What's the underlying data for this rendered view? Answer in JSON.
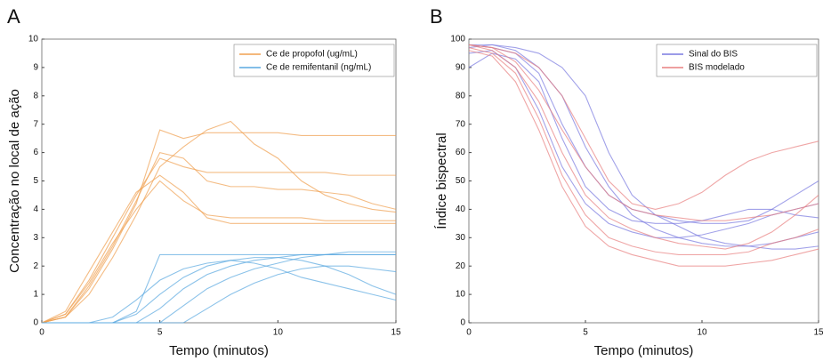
{
  "chart_data": [
    {
      "type": "line",
      "panel_label": "A",
      "xlabel": "Tempo (minutos)",
      "ylabel": "Concentração no local de ação",
      "xlim": [
        0,
        15
      ],
      "xticks": [
        0,
        5,
        10,
        15
      ],
      "ylim": [
        0,
        10
      ],
      "yticks": [
        0,
        1,
        2,
        3,
        4,
        5,
        6,
        7,
        8,
        9,
        10
      ],
      "x": [
        0,
        1,
        2,
        3,
        4,
        5,
        6,
        7,
        8,
        9,
        10,
        11,
        12,
        13,
        14,
        15
      ],
      "series": [
        {
          "name": "Ce de propofol (ug/mL)",
          "color": "#f0a050",
          "lines": [
            [
              0,
              0.3,
              1.5,
              3,
              4.5,
              5.8,
              5.5,
              5.3,
              5.3,
              5.3,
              5.3,
              5.3,
              5.3,
              5.2,
              5.2,
              5.2
            ],
            [
              0,
              0.2,
              1.2,
              2.6,
              4.2,
              6.8,
              6.5,
              6.7,
              6.7,
              6.7,
              6.7,
              6.6,
              6.6,
              6.6,
              6.6,
              6.6
            ],
            [
              0,
              0.3,
              1.4,
              2.8,
              4.0,
              5.0,
              4.3,
              3.8,
              3.7,
              3.7,
              3.7,
              3.7,
              3.6,
              3.6,
              3.6,
              3.6
            ],
            [
              0,
              0.2,
              1.3,
              2.7,
              4.3,
              6.0,
              5.8,
              5.0,
              4.8,
              4.8,
              4.7,
              4.7,
              4.6,
              4.5,
              4.2,
              4.0
            ],
            [
              0,
              0.4,
              1.8,
              3.2,
              4.6,
              5.2,
              4.6,
              3.7,
              3.5,
              3.5,
              3.5,
              3.5,
              3.5,
              3.5,
              3.5,
              3.5
            ],
            [
              0,
              0.2,
              1.0,
              2.3,
              3.8,
              5.5,
              6.2,
              6.8,
              7.1,
              6.3,
              5.8,
              5.0,
              4.5,
              4.2,
              4.0,
              3.9
            ]
          ]
        },
        {
          "name": "Ce de remifentanil (ng/mL)",
          "color": "#5aa8e0",
          "lines": [
            [
              0,
              0,
              0,
              0,
              0,
              0.5,
              1.2,
              1.7,
              2.0,
              2.2,
              2.3,
              2.4,
              2.4,
              2.4,
              2.4,
              2.4
            ],
            [
              0,
              0,
              0,
              0,
              0.3,
              1.0,
              1.6,
              2.0,
              2.2,
              2.3,
              2.3,
              2.2,
              2.0,
              1.7,
              1.3,
              1.0
            ],
            [
              0,
              0,
              0,
              0,
              0,
              0,
              0.6,
              1.2,
              1.6,
              1.9,
              2.1,
              2.3,
              2.4,
              2.5,
              2.5,
              2.5
            ],
            [
              0,
              0,
              0,
              0.2,
              0.8,
              1.5,
              1.9,
              2.1,
              2.2,
              2.1,
              1.9,
              1.6,
              1.4,
              1.2,
              1.0,
              0.8
            ],
            [
              0,
              0,
              0,
              0,
              0,
              0,
              0,
              0.5,
              1.0,
              1.4,
              1.7,
              1.9,
              2.0,
              2.0,
              1.9,
              1.8
            ],
            [
              0,
              0,
              0,
              0,
              0.4,
              2.4,
              2.4,
              2.4,
              2.4,
              2.4,
              2.4,
              2.4,
              2.4,
              2.4,
              2.4,
              2.4
            ]
          ]
        }
      ]
    },
    {
      "type": "line",
      "panel_label": "B",
      "xlabel": "Tempo (minutos)",
      "ylabel": "Índice bispectral",
      "xlim": [
        0,
        15
      ],
      "xticks": [
        0,
        5,
        10,
        15
      ],
      "ylim": [
        0,
        100
      ],
      "yticks": [
        0,
        10,
        20,
        30,
        40,
        50,
        60,
        70,
        80,
        90,
        100
      ],
      "x": [
        0,
        1,
        2,
        3,
        4,
        5,
        6,
        7,
        8,
        9,
        10,
        11,
        12,
        13,
        14,
        15
      ],
      "series": [
        {
          "name": "Sinal do BIS",
          "color": "#7a7ae0",
          "lines": [
            [
              98,
              97,
              95,
              88,
              70,
              55,
              45,
              40,
              38,
              36,
              35,
              35,
              36,
              40,
              45,
              50
            ],
            [
              97,
              98,
              96,
              90,
              80,
              62,
              48,
              38,
              33,
              30,
              28,
              27,
              27,
              28,
              30,
              32
            ],
            [
              95,
              96,
              90,
              75,
              55,
              42,
              35,
              32,
              30,
              30,
              31,
              33,
              35,
              38,
              40,
              42
            ],
            [
              98,
              98,
              97,
              95,
              90,
              80,
              60,
              45,
              38,
              34,
              30,
              28,
              27,
              26,
              26,
              27
            ],
            [
              90,
              95,
              93,
              85,
              65,
              48,
              40,
              36,
              35,
              35,
              36,
              38,
              40,
              40,
              38,
              37
            ]
          ]
        },
        {
          "name": "BIS modelado",
          "color": "#e88080",
          "lines": [
            [
              98,
              96,
              90,
              78,
              60,
              45,
              37,
              33,
              30,
              28,
              27,
              26,
              28,
              32,
              38,
              45
            ],
            [
              97,
              95,
              88,
              72,
              52,
              38,
              30,
              27,
              25,
              24,
              24,
              24,
              25,
              28,
              30,
              33
            ],
            [
              98,
              97,
              92,
              82,
              68,
              55,
              45,
              40,
              38,
              37,
              36,
              36,
              37,
              38,
              40,
              42
            ],
            [
              96,
              94,
              85,
              68,
              48,
              34,
              27,
              24,
              22,
              20,
              20,
              20,
              21,
              22,
              24,
              26
            ],
            [
              98,
              97,
              95,
              90,
              80,
              65,
              50,
              42,
              40,
              42,
              46,
              52,
              57,
              60,
              62,
              64
            ]
          ]
        }
      ]
    }
  ]
}
